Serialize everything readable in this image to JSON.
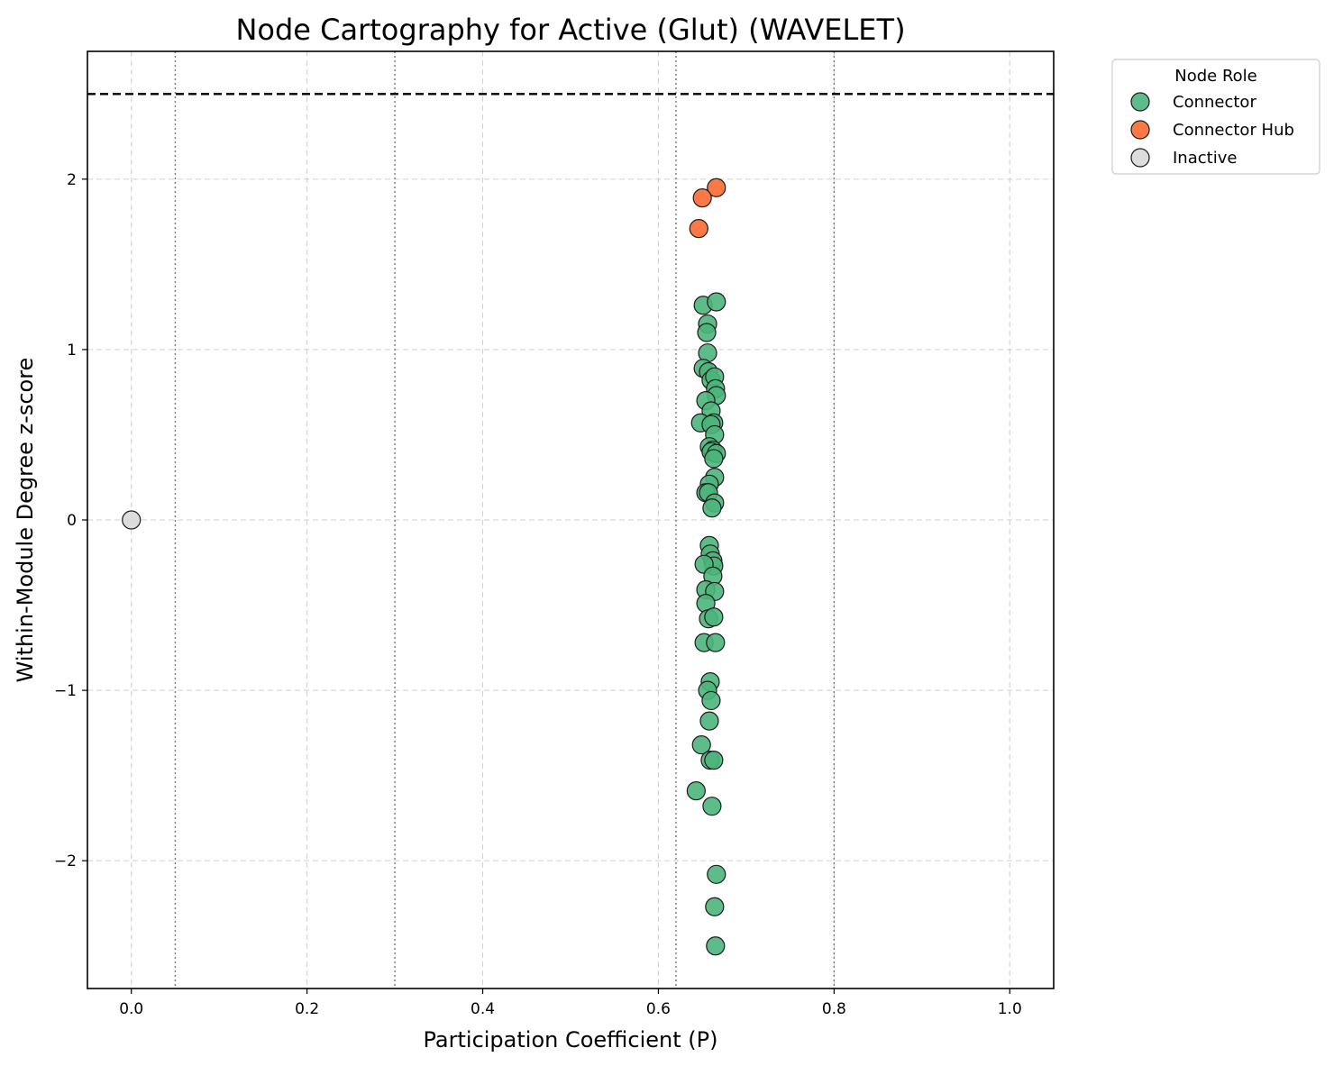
{
  "chart_data": {
    "type": "scatter",
    "title": "Node Cartography for Active (Glut) (WAVELET)",
    "xlabel": "Participation Coefficient (P)",
    "ylabel": "Within-Module Degree z-score",
    "xlim": [
      -0.05,
      1.05
    ],
    "ylim": [
      -2.75,
      2.75
    ],
    "xticks": [
      0.0,
      0.2,
      0.4,
      0.6,
      0.8,
      1.0
    ],
    "xtick_labels": [
      "0.0",
      "0.2",
      "0.4",
      "0.6",
      "0.8",
      "1.0"
    ],
    "yticks": [
      -2,
      -1,
      0,
      1,
      2
    ],
    "ytick_labels": [
      "−2",
      "−1",
      "0",
      "1",
      "2"
    ],
    "grid": true,
    "reference_lines": {
      "horizontal_dashed": [
        2.5
      ],
      "vertical_dotted": [
        0.05,
        0.3,
        0.62,
        0.8
      ]
    },
    "legend": {
      "title": "Node Role",
      "placement": "outside-top-right",
      "entries": [
        "Connector",
        "Connector Hub",
        "Inactive"
      ]
    },
    "series": [
      {
        "name": "Connector",
        "color": "#4db57b",
        "points": [
          [
            0.651,
            1.26
          ],
          [
            0.666,
            1.28
          ],
          [
            0.656,
            1.15
          ],
          [
            0.655,
            1.1
          ],
          [
            0.656,
            0.98
          ],
          [
            0.651,
            0.89
          ],
          [
            0.657,
            0.87
          ],
          [
            0.66,
            0.82
          ],
          [
            0.664,
            0.84
          ],
          [
            0.665,
            0.77
          ],
          [
            0.666,
            0.73
          ],
          [
            0.654,
            0.7
          ],
          [
            0.66,
            0.64
          ],
          [
            0.648,
            0.57
          ],
          [
            0.663,
            0.57
          ],
          [
            0.66,
            0.56
          ],
          [
            0.664,
            0.5
          ],
          [
            0.658,
            0.43
          ],
          [
            0.662,
            0.41
          ],
          [
            0.66,
            0.4
          ],
          [
            0.666,
            0.39
          ],
          [
            0.663,
            0.36
          ],
          [
            0.664,
            0.25
          ],
          [
            0.658,
            0.21
          ],
          [
            0.654,
            0.16
          ],
          [
            0.657,
            0.16
          ],
          [
            0.664,
            0.1
          ],
          [
            0.661,
            0.07
          ],
          [
            0.658,
            -0.15
          ],
          [
            0.659,
            -0.2
          ],
          [
            0.662,
            -0.24
          ],
          [
            0.663,
            -0.27
          ],
          [
            0.652,
            -0.26
          ],
          [
            0.662,
            -0.33
          ],
          [
            0.654,
            -0.41
          ],
          [
            0.664,
            -0.42
          ],
          [
            0.654,
            -0.49
          ],
          [
            0.657,
            -0.58
          ],
          [
            0.663,
            -0.57
          ],
          [
            0.652,
            -0.72
          ],
          [
            0.665,
            -0.72
          ],
          [
            0.659,
            -0.95
          ],
          [
            0.656,
            -1.0
          ],
          [
            0.66,
            -1.06
          ],
          [
            0.658,
            -1.18
          ],
          [
            0.649,
            -1.32
          ],
          [
            0.659,
            -1.41
          ],
          [
            0.663,
            -1.41
          ],
          [
            0.643,
            -1.59
          ],
          [
            0.661,
            -1.68
          ],
          [
            0.666,
            -2.08
          ],
          [
            0.664,
            -2.27
          ],
          [
            0.665,
            -2.5
          ]
        ]
      },
      {
        "name": "Connector Hub",
        "color": "#fc6a32",
        "points": [
          [
            0.666,
            1.95
          ],
          [
            0.65,
            1.89
          ],
          [
            0.646,
            1.71
          ]
        ]
      },
      {
        "name": "Inactive",
        "color": "#d9d9d9",
        "points": [
          [
            0.0,
            0.0
          ]
        ]
      }
    ]
  }
}
